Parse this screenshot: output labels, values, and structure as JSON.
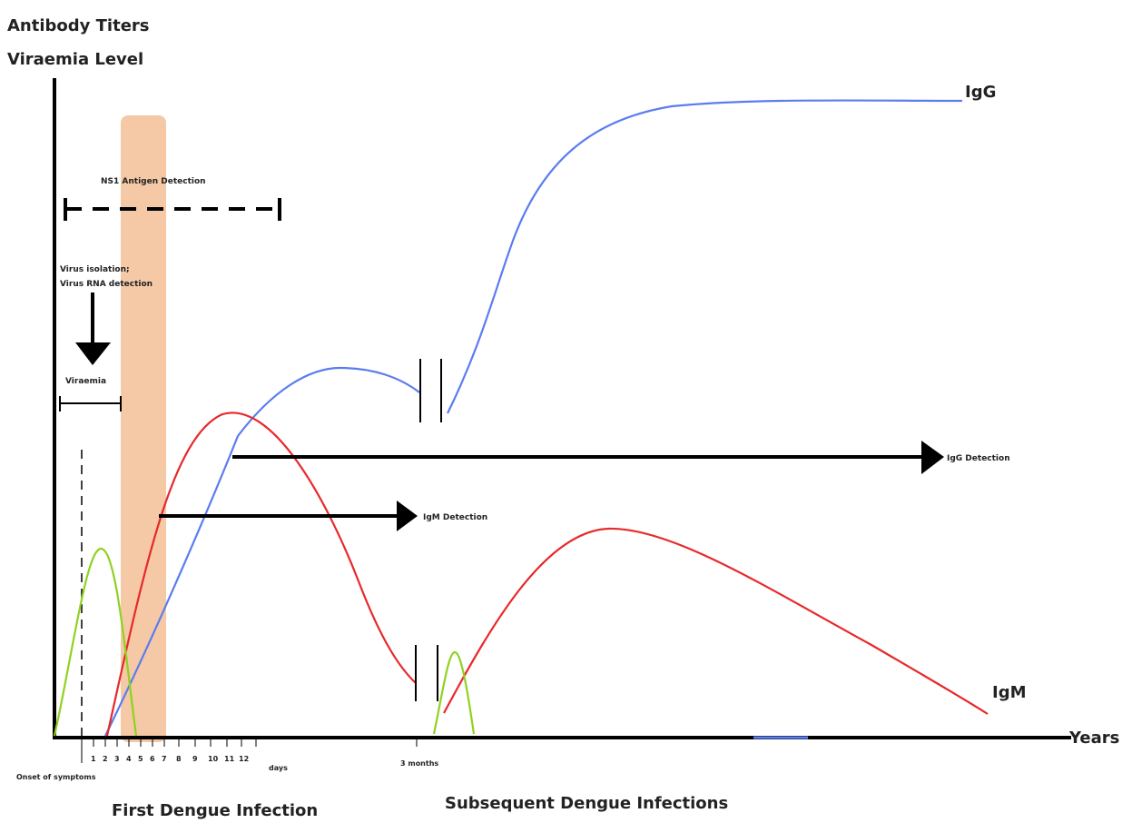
{
  "labels": {
    "y_title_1": "Antibody Titers",
    "y_title_2": "Viraemia Level",
    "x_title": "Years",
    "igg_curve": "IgG",
    "igm_curve": "IgM",
    "ns1": "NS1 Antigen Detection",
    "virus_iso_1": "Virus isolation;",
    "virus_iso_2": "Virus RNA detection",
    "viraemia": "Viraemia",
    "igg_detection": "IgG Detection",
    "igm_detection": "IgM Detection",
    "onset": "Onset of symptoms",
    "days": "days",
    "three_months": "3 months",
    "first_infection": "First Dengue Infection",
    "subsequent_infection": "Subsequent Dengue Infections"
  },
  "day_ticks": [
    "1",
    "2",
    "3",
    "4",
    "5",
    "6",
    "7",
    "8",
    "9",
    "10",
    "11",
    "12"
  ],
  "colors": {
    "igg": "#5b7cf0",
    "igm": "#e8282a",
    "viraemia": "#8fd21f",
    "highlight": "#f5c9a6",
    "axis": "#000000"
  }
}
